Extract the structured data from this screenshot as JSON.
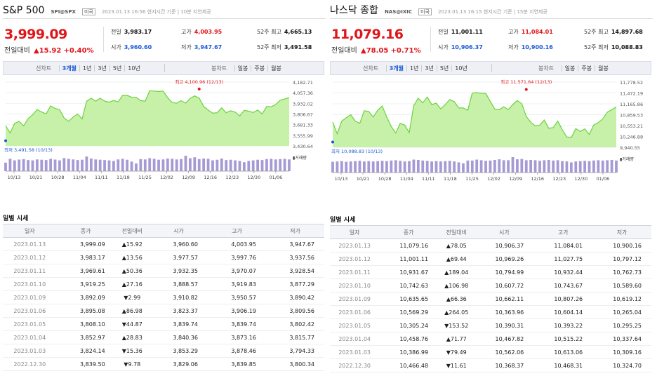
{
  "panels": [
    {
      "name": "S&P 500",
      "code": "SPI@SPX",
      "nation": "미국",
      "info": "2023.01.13 16:56 현지시간 기준 | 10분 지연제공",
      "price": "3,999.09",
      "change_label": "전일대비",
      "change_value": "▲15.92",
      "change_pct": "+0.40%",
      "stats": {
        "prev_label": "전일",
        "prev": "3,983.17",
        "high_label": "고가",
        "high": "4,003.95",
        "w52h_label": "52주 최고",
        "w52h": "4,665.13",
        "open_label": "시가",
        "open": "3,960.60",
        "low_label": "저가",
        "low": "3,947.67",
        "w52l_label": "52주 최저",
        "w52l": "3,491.58"
      },
      "tabs": {
        "line_label": "선차트",
        "line": [
          "3개월",
          "1년",
          "3년",
          "5년",
          "10년"
        ],
        "line_active": 0,
        "bar_label": "봉차트",
        "bar": [
          "일봉",
          "주봉",
          "월봉"
        ]
      },
      "chart_data": {
        "type": "area",
        "y_ticks": [
          "4,182.71",
          "4,057.36",
          "3,932.02",
          "3,806.67",
          "3,681.33",
          "3,555.99",
          "3,430.64"
        ],
        "ylim": [
          3430.64,
          4182.71
        ],
        "x_ticks": [
          "10/13",
          "10/21",
          "10/28",
          "11/04",
          "11/11",
          "11/18",
          "11/25",
          "12/02",
          "12/09",
          "12/16",
          "12/23",
          "12/30",
          "01/06"
        ],
        "values": [
          3669.91,
          3583.07,
          3695.16,
          3719.98,
          3665.78,
          3752.75,
          3797.34,
          3859.11,
          3830.6,
          3807.3,
          3901.06,
          3871.98,
          3856.1,
          3759.69,
          3719.89,
          3771.55,
          3806.8,
          3748.57,
          3956.37,
          3992.93,
          3957.25,
          3991.73,
          3958.79,
          3946.56,
          3965.34,
          3949.94,
          4027.26,
          4026.12,
          4003.58,
          4003.58,
          3963.94,
          3957.63,
          4080.11,
          4076.57,
          4071.7,
          4076.57,
          3998.84,
          3941.26,
          3933.92,
          3963.51,
          3934.38,
          3990.56,
          4019.65,
          3995.32,
          3895.75,
          3852.36,
          3817.66,
          3821.62,
          3878.44,
          3822.39,
          3844.82,
          3829.25,
          3783.22,
          3849.28,
          3839.5,
          3824.14,
          3852.97,
          3808.1,
          3895.08,
          3892.09,
          3919.25,
          3969.61,
          3983.17,
          3999.09
        ],
        "volume": [
          0.55,
          0.8,
          0.7,
          0.75,
          0.78,
          0.72,
          0.7,
          0.76,
          0.74,
          0.72,
          0.8,
          0.75,
          0.7,
          0.85,
          0.8,
          0.76,
          0.72,
          0.74,
          0.95,
          0.82,
          0.76,
          0.74,
          0.72,
          0.7,
          0.66,
          0.76,
          0.8,
          0.74,
          0.62,
          0.5,
          0.78,
          0.76,
          0.84,
          0.8,
          0.74,
          0.76,
          0.82,
          0.8,
          0.76,
          0.78,
          1.0,
          0.84,
          0.9,
          0.78,
          0.82,
          0.8,
          0.7,
          0.74,
          0.82,
          0.72,
          0.74,
          0.7,
          0.66,
          0.58,
          0.66,
          0.7,
          0.74,
          0.72,
          0.78,
          0.8,
          0.76,
          0.78,
          0.8,
          0.76
        ],
        "max_label": "최고 4,100.96 (12/13)",
        "max_value": 4100.96,
        "max_index": 43,
        "min_label": "최저 3,491.58 (10/13)",
        "min_value": 3491.58,
        "min_index": 0,
        "volume_label": "거래량"
      },
      "daily_title": "일별 시세",
      "columns": [
        "일자",
        "종가",
        "전일대비",
        "시가",
        "고가",
        "저가"
      ],
      "rows": [
        [
          "2023.01.13",
          "3,999.09",
          "▲15.92",
          "3,960.60",
          "4,003.95",
          "3,947.67"
        ],
        [
          "2023.01.12",
          "3,983.17",
          "▲13.56",
          "3,977.57",
          "3,997.76",
          "3,937.56"
        ],
        [
          "2023.01.11",
          "3,969.61",
          "▲50.36",
          "3,932.35",
          "3,970.07",
          "3,928.54"
        ],
        [
          "2023.01.10",
          "3,919.25",
          "▲27.16",
          "3,888.57",
          "3,919.83",
          "3,877.29"
        ],
        [
          "2023.01.09",
          "3,892.09",
          "▼2.99",
          "3,910.82",
          "3,950.57",
          "3,890.42"
        ],
        [
          "2023.01.06",
          "3,895.08",
          "▲86.98",
          "3,823.37",
          "3,906.19",
          "3,809.56"
        ],
        [
          "2023.01.05",
          "3,808.10",
          "▼44.87",
          "3,839.74",
          "3,839.74",
          "3,802.42"
        ],
        [
          "2023.01.04",
          "3,852.97",
          "▲28.83",
          "3,840.36",
          "3,873.16",
          "3,815.77"
        ],
        [
          "2023.01.03",
          "3,824.14",
          "▼15.36",
          "3,853.29",
          "3,878.46",
          "3,794.33"
        ],
        [
          "2022.12.30",
          "3,839.50",
          "▼9.78",
          "3,829.06",
          "3,839.85",
          "3,800.34"
        ]
      ]
    },
    {
      "name": "나스닥 종합",
      "code": "NAS@IXIC",
      "nation": "미국",
      "info": "2023.01.13 16:15 현지시간 기준 | 15분 지연제공",
      "price": "11,079.16",
      "change_label": "전일대비",
      "change_value": "▲78.05",
      "change_pct": "+0.71%",
      "stats": {
        "prev_label": "전일",
        "prev": "11,001.11",
        "high_label": "고가",
        "high": "11,084.01",
        "w52h_label": "52주 최고",
        "w52h": "14,897.68",
        "open_label": "시가",
        "open": "10,906.37",
        "low_label": "저가",
        "low": "10,900.16",
        "w52l_label": "52주 최저",
        "w52l": "10,088.83"
      },
      "tabs": {
        "line_label": "선차트",
        "line": [
          "3개월",
          "1년",
          "3년",
          "5년",
          "10년"
        ],
        "line_active": 0,
        "bar_label": "봉차트",
        "bar": [
          "일봉",
          "주봉",
          "월봉"
        ]
      },
      "chart_data": {
        "type": "area",
        "y_ticks": [
          "11,778.52",
          "11,472.19",
          "11,165.86",
          "10,859.53",
          "10,553.21",
          "10,246.88",
          "9,940.55"
        ],
        "ylim": [
          9940.55,
          11778.52
        ],
        "x_ticks": [
          "10/13",
          "10/21",
          "10/28",
          "11/04",
          "11/11",
          "11/18",
          "11/25",
          "12/02",
          "12/09",
          "12/16",
          "12/23",
          "12/30",
          "01/06"
        ],
        "values": [
          10649.15,
          10321.39,
          10675.8,
          10772.4,
          10859.72,
          10680.51,
          10614.84,
          10970.99,
          10952.61,
          10792.68,
          10988.15,
          11102.45,
          10792.68,
          10524.8,
          10342.94,
          10616.2,
          10564.52,
          10353.17,
          11114.15,
          11323.33,
          11196.22,
          11358.41,
          11144.96,
          11183.66,
          11024.51,
          11146.06,
          11285.32,
          11226.36,
          11049.5,
          11049.5,
          10983.78,
          11468.0,
          11482.45,
          11461.5,
          11461.5,
          11239.94,
          11014.89,
          11004.62,
          11082.0,
          11004.62,
          11143.74,
          11256.81,
          11170.89,
          10810.53,
          10646.1,
          10546.03,
          10568.0,
          10709.37,
          10476.12,
          10497.86,
          10676.74,
          10437.98,
          10230.56,
          10213.29,
          10466.48,
          10386.99,
          10458.76,
          10305.24,
          10569.29,
          10635.65,
          10742.63,
          10931.67,
          11001.11,
          11079.16
        ],
        "volume": [
          0.7,
          0.72,
          0.74,
          0.7,
          0.72,
          0.74,
          0.76,
          0.72,
          0.74,
          0.72,
          0.74,
          0.76,
          0.74,
          0.78,
          0.8,
          0.76,
          0.72,
          0.74,
          0.84,
          0.82,
          0.78,
          0.76,
          0.72,
          0.74,
          0.72,
          0.74,
          0.76,
          0.72,
          0.66,
          0.6,
          0.78,
          0.78,
          0.84,
          0.8,
          0.76,
          0.78,
          0.82,
          0.86,
          0.8,
          0.8,
          1.0,
          0.86,
          0.88,
          0.8,
          0.82,
          0.8,
          0.76,
          0.8,
          0.82,
          0.78,
          0.8,
          0.74,
          0.72,
          0.66,
          0.72,
          0.74,
          0.76,
          0.74,
          0.78,
          0.8,
          0.78,
          0.8,
          0.82,
          0.78
        ],
        "max_label": "최고 11,571.64 (12/13)",
        "max_value": 11571.64,
        "max_index": 43,
        "min_label": "최저 10,088.83 (10/13)",
        "min_value": 10088.83,
        "min_index": 0,
        "volume_label": "거래량"
      },
      "daily_title": "일별 시세",
      "columns": [
        "일자",
        "종가",
        "전일대비",
        "시가",
        "고가",
        "저가"
      ],
      "rows": [
        [
          "2023.01.13",
          "11,079.16",
          "▲78.05",
          "10,906.37",
          "11,084.01",
          "10,900.16"
        ],
        [
          "2023.01.12",
          "11,001.11",
          "▲69.44",
          "10,969.26",
          "11,027.75",
          "10,797.12"
        ],
        [
          "2023.01.11",
          "10,931.67",
          "▲189.04",
          "10,794.99",
          "10,932.44",
          "10,762.73"
        ],
        [
          "2023.01.10",
          "10,742.63",
          "▲106.98",
          "10,607.72",
          "10,743.67",
          "10,589.60"
        ],
        [
          "2023.01.09",
          "10,635.65",
          "▲66.36",
          "10,662.11",
          "10,807.26",
          "10,619.12"
        ],
        [
          "2023.01.06",
          "10,569.29",
          "▲264.05",
          "10,363.96",
          "10,604.14",
          "10,265.04"
        ],
        [
          "2023.01.05",
          "10,305.24",
          "▼153.52",
          "10,390.31",
          "10,393.22",
          "10,295.25"
        ],
        [
          "2023.01.04",
          "10,458.76",
          "▲71.77",
          "10,467.82",
          "10,515.22",
          "10,337.64"
        ],
        [
          "2023.01.03",
          "10,386.99",
          "▼79.49",
          "10,562.06",
          "10,613.06",
          "10,309.16"
        ],
        [
          "2022.12.30",
          "10,466.48",
          "▼11.61",
          "10,368.37",
          "10,468.31",
          "10,324.70"
        ]
      ]
    }
  ]
}
